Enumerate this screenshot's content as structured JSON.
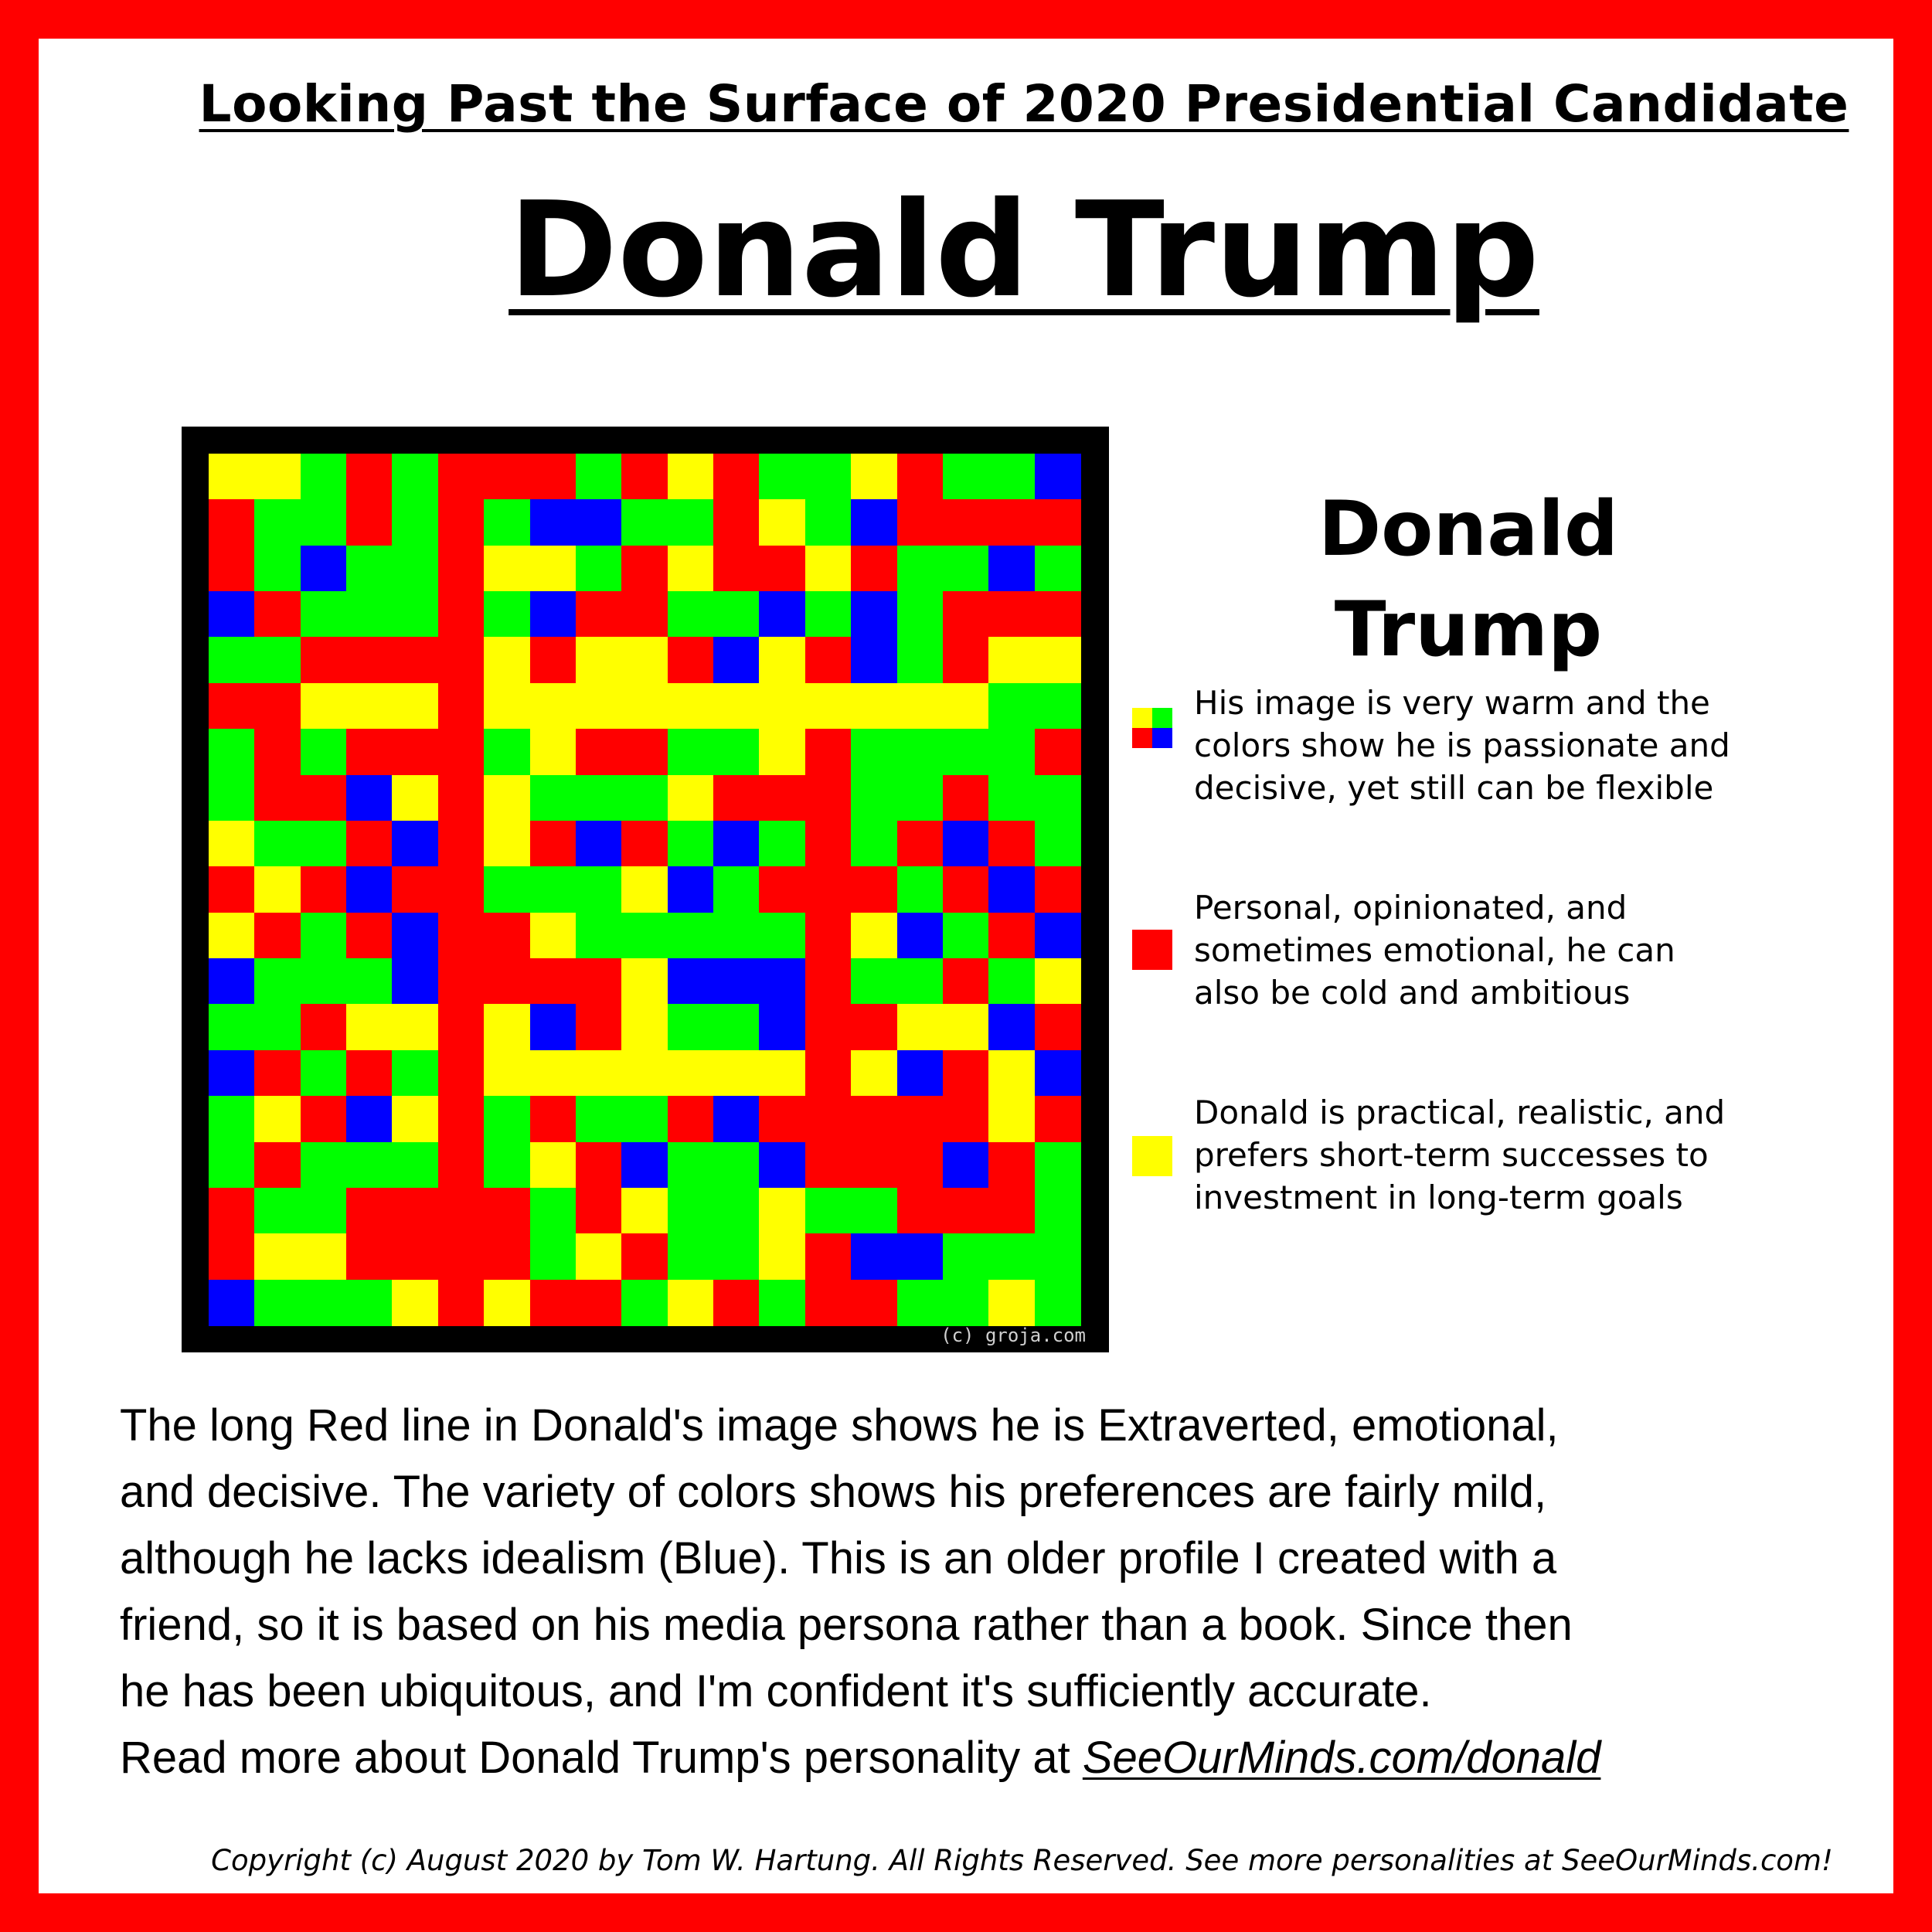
{
  "header": {
    "subtitle": "Looking Past the Surface of 2020 Presidential Candidate",
    "title": "Donald Trump"
  },
  "image": {
    "credit": "(c) groja.com",
    "palette": {
      "R": "#ff0000",
      "G": "#00ff00",
      "B": "#0000ff",
      "Y": "#ffff00"
    },
    "grid": [
      "YYGRGRRRGRYRGGYRGGB",
      "RGGRGRGBBGGRYGBRRRR",
      "RGBGGRYYGRYRRYRGGBG",
      "BRGGGRGBRRGGBGBGRRR",
      "GGRRRRYRYYRBYRBGRYY",
      "RRYYYRYYYYYYYYYYYGG",
      "GRGRRRGYRRGGYRGGGGR",
      "GRRBYRYGGGYRRRGGRGG",
      "YGGRBRYRBRGBGRGRBRG",
      "RYRBRRGGGYBGRRRGRBR",
      "YRGRBRRYGGGGGRYBGRB",
      "BGGGBRRRRYBBBRGGRGY",
      "GGRYYRYBRYGGBRRYYBR",
      "BRGRGRYYYYYYYRYBRYB",
      "GYRBYRGRGGRBRRRRRYR",
      "GRGGGRGYRBGGBRRRBRG",
      "RGGRRRRGRYGGYGGRRRG",
      "RYYRRRRGYRGGYRBBGGG",
      "BGGGYRYRRGYRGRRGGYG"
    ]
  },
  "panel": {
    "name_line1": "Donald",
    "name_line2": "Trump"
  },
  "legend": [
    {
      "icon": "four-color-square",
      "colors": [
        "#ffff00",
        "#00ff00",
        "#ff0000",
        "#0000ff"
      ],
      "lines": [
        "His image is very warm and the",
        "colors show he is passionate and",
        "decisive, yet still can be flexible"
      ]
    },
    {
      "icon": "red-square",
      "colors": [
        "#ff0000"
      ],
      "lines": [
        "Personal, opinionated, and",
        "sometimes emotional, he can",
        "also be cold and ambitious"
      ]
    },
    {
      "icon": "yellow-square",
      "colors": [
        "#ffff00"
      ],
      "lines": [
        "Donald is practical, realistic, and",
        "prefers short-term successes to",
        "investment in long-term goals"
      ]
    }
  ],
  "body": {
    "lines": [
      "The long Red line in Donald's image shows he is Extraverted, emotional,",
      "and decisive.  The variety of colors shows his preferences are fairly mild,",
      "although he lacks idealism (Blue).  This is an older profile I created with a",
      "friend, so it is based on his media persona rather than a book.  Since then",
      "he has been ubiquitous, and I'm confident it's sufficiently accurate."
    ],
    "read_more_prefix": "Read more about Donald Trump's personality at ",
    "link_text": "SeeOurMinds.com/donald"
  },
  "footer": {
    "copyright": "Copyright (c) August 2020 by Tom W. Hartung.  All Rights Reserved.  See more personalities at SeeOurMinds.com!"
  }
}
